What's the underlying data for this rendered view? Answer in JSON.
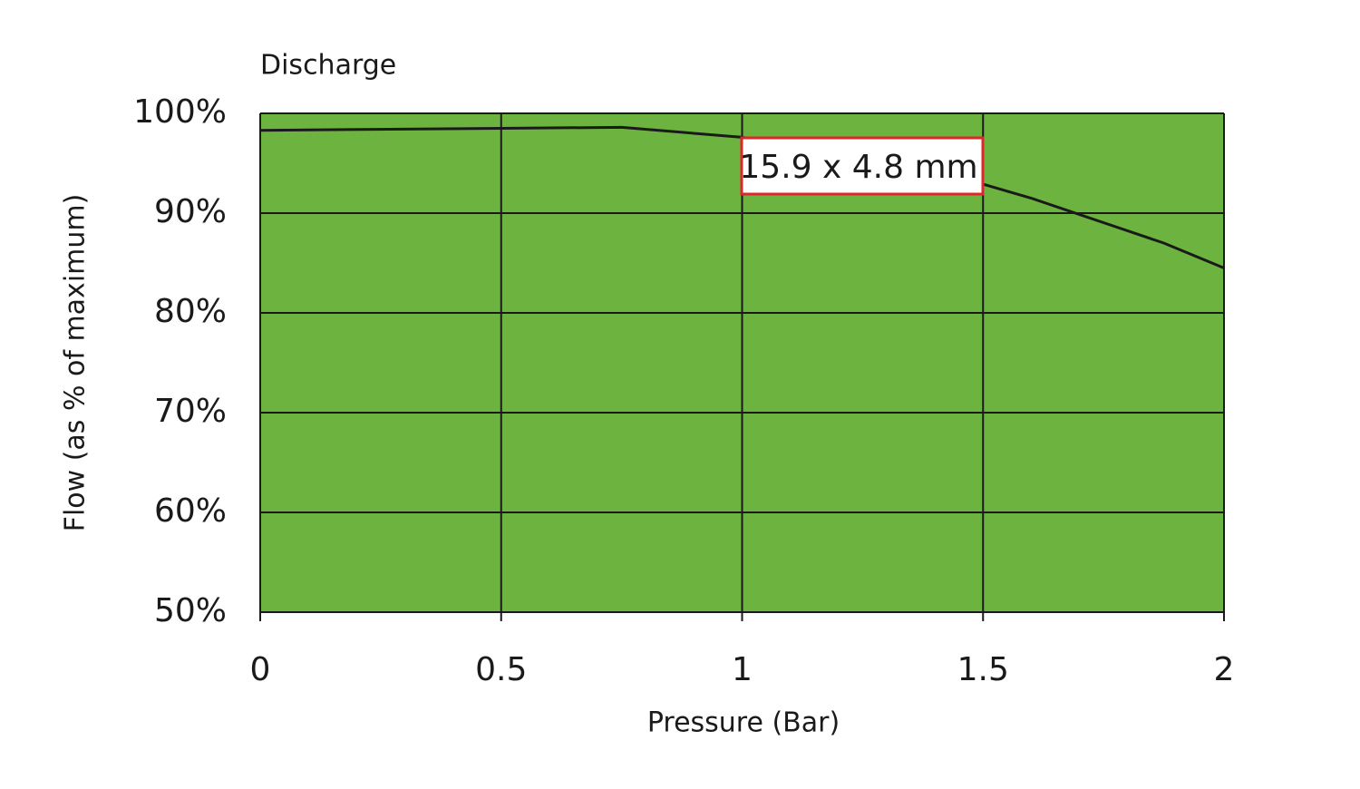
{
  "chart_data": {
    "type": "line",
    "title": "Discharge",
    "x_label": "Pressure (Bar)",
    "y_label": "Flow (as % of maximum)",
    "x": [
      0,
      0.5,
      0.75,
      1,
      1.5,
      1.6,
      1.875,
      2
    ],
    "values": [
      98.3,
      98.5,
      98.6,
      97.6,
      92.9,
      91.5,
      87.0,
      84.5
    ],
    "color": "#1a1a1a",
    "background": "#6db33f",
    "xlim": [
      0,
      2
    ],
    "xticks": [
      0,
      0.5,
      1,
      1.5,
      2
    ],
    "ylim": [
      50,
      100
    ],
    "yticks": [
      {
        "value": 50,
        "label": "50%"
      },
      {
        "value": 60,
        "label": "60%"
      },
      {
        "value": 70,
        "label": "70%"
      },
      {
        "value": 80,
        "label": "80%"
      },
      {
        "value": 90,
        "label": "90%"
      },
      {
        "value": 100,
        "label": "100%"
      }
    ],
    "grid": true,
    "annotation": "15.9 x 4.8 mm"
  }
}
